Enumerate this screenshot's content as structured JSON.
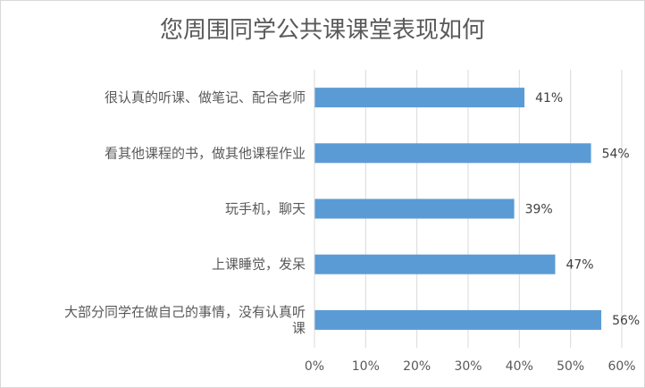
{
  "chart_data": {
    "type": "bar",
    "orientation": "horizontal",
    "title": "您周围同学公共课课堂表现如何",
    "categories": [
      "很认真的听课、做笔记、配合老师",
      "看其他课程的书，做其他课程作业",
      "玩手机，聊天",
      "上课睡觉，发呆",
      "大部分同学在做自己的事情，没有认真听课"
    ],
    "category_lines": [
      [
        "很认真的听课、做笔记、配合老师"
      ],
      [
        "看其他课程的书，做其他课程作业"
      ],
      [
        "玩手机，聊天"
      ],
      [
        "上课睡觉，发呆"
      ],
      [
        "大部分同学在做自己的事情，没有认真听",
        "课"
      ]
    ],
    "values": [
      41,
      54,
      39,
      47,
      56
    ],
    "data_labels": [
      "41%",
      "54%",
      "39%",
      "47%",
      "56%"
    ],
    "xlim": [
      0,
      60
    ],
    "xticks": [
      "0%",
      "10%",
      "20%",
      "30%",
      "40%",
      "50%",
      "60%"
    ],
    "gridlines": true,
    "legend": "none",
    "colors": {
      "bar": "#5b9bd5",
      "grid": "#d9d9d9",
      "text": "#595959"
    }
  }
}
